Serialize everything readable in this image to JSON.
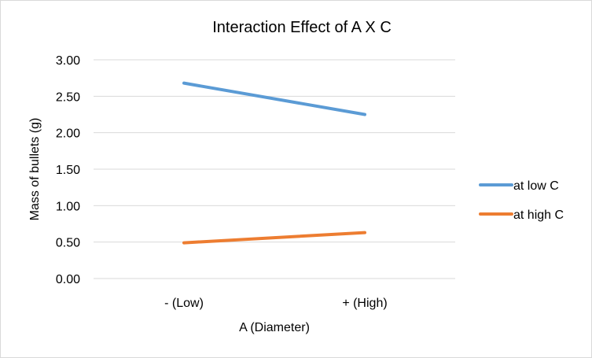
{
  "chart_data": {
    "type": "line",
    "title": "Interaction Effect of A X C",
    "xlabel": "A (Diameter)",
    "ylabel": "Mass of bullets (g)",
    "categories": [
      "- (Low)",
      "+ (High)"
    ],
    "ylim": [
      0,
      3
    ],
    "yticks": [
      "0.00",
      "0.50",
      "1.00",
      "1.50",
      "2.00",
      "2.50",
      "3.00"
    ],
    "ytick_values": [
      0,
      0.5,
      1,
      1.5,
      2,
      2.5,
      3
    ],
    "grid": true,
    "legend_position": "right",
    "series": [
      {
        "name": "at low C",
        "values": [
          2.68,
          2.25
        ],
        "color": "#5b9bd5"
      },
      {
        "name": "at high C",
        "values": [
          0.49,
          0.63
        ],
        "color": "#ed7d31"
      }
    ]
  }
}
